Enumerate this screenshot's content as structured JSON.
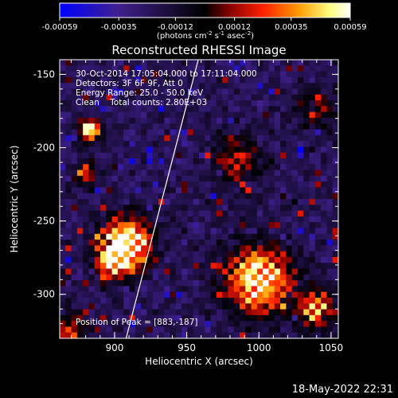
{
  "colorbar": {
    "ticks": [
      "-0.00059",
      "-0.00035",
      "-0.00012",
      "0.00012",
      "0.00035",
      "0.00059"
    ],
    "tick_values": [
      -0.00059,
      -0.00035,
      -0.00012,
      0.00012,
      0.00035,
      0.00059
    ],
    "range": [
      -0.00059,
      0.00059
    ],
    "units_html": "(photons cm<tspan dy='-4' font-size='7px'>-2</tspan><tspan dy='4'> s</tspan><tspan dy='-4' font-size='7px'>-1</tspan><tspan dy='4'> asec</tspan><tspan dy='-4' font-size='7px'>-2</tspan><tspan dy='4'>)</tspan>",
    "colors": [
      "#0000ff",
      "#40208f",
      "#000000",
      "#7f0000",
      "#ff2000",
      "#ff9800",
      "#ffff80",
      "#ffffff"
    ]
  },
  "chart_data": {
    "type": "heatmap",
    "title": "Reconstructed RHESSI Image",
    "xlabel": "Heliocentric X (arcsec)",
    "ylabel": "Heliocentric Y (arcsec)",
    "xlim": [
      862,
      1055
    ],
    "ylim": [
      -330,
      -140
    ],
    "xticks": [
      900,
      950,
      1000,
      1050
    ],
    "yticks": [
      -150,
      -200,
      -250,
      -300
    ],
    "info_lines": [
      "30-Oct-2014 17:05:04.000 to 17:11:04.000",
      "Detectors: 3F 6F 9F, Att 0",
      "Energy Range: 25.0 - 50.0 keV",
      "Clean    Total counts: 2.80E+03"
    ],
    "peak_label": "Position of Peak = [883,-187]",
    "peak": [
      883,
      -187
    ],
    "limb_line": [
      [
        908,
        -330
      ],
      [
        958,
        -140
      ]
    ],
    "sources": [
      {
        "x": 883,
        "y": -188,
        "peak": 1.0,
        "sigma": 5
      },
      {
        "x": 880,
        "y": -218,
        "peak": 0.55,
        "sigma": 5
      },
      {
        "x": 908,
        "y": -265,
        "peak": 0.95,
        "sigma": 12
      },
      {
        "x": 898,
        "y": -278,
        "peak": 0.6,
        "sigma": 8
      },
      {
        "x": 1000,
        "y": -290,
        "peak": 0.85,
        "sigma": 16
      },
      {
        "x": 1040,
        "y": -310,
        "peak": 0.65,
        "sigma": 9
      },
      {
        "x": 985,
        "y": -210,
        "peak": 0.35,
        "sigma": 12
      },
      {
        "x": 1040,
        "y": -175,
        "peak": 0.3,
        "sigma": 10
      },
      {
        "x": 870,
        "y": -325,
        "peak": 0.45,
        "sigma": 8
      }
    ]
  },
  "footer": {
    "timestamp": "18-May-2022 22:31"
  }
}
